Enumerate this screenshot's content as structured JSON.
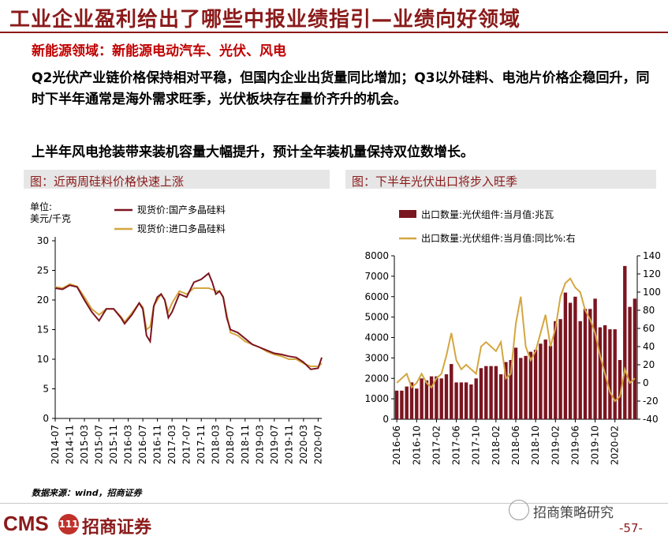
{
  "title": "工业企业盈利给出了哪些中报业绩指引—业绩向好领域",
  "subtitle": "新能源领域：新能源电动汽车、光伏、风电",
  "paragraph1": "Q2光伏产业链价格保持相对平稳，但国内企业出货量同比增加；Q3以外硅料、电池片价格企稳回升，同时下半年通常是海外需求旺季，光伏板块存在量价齐升的机会。",
  "paragraph2": "上半年风电抢装带来装机容量大幅提升，预计全年装机量保持双位数增长。",
  "source": "数据来源：wind，招商证券",
  "footer": {
    "logo_text": "CMS",
    "logo_badge": "111",
    "logo_cn": "招商证券",
    "wechat": "招商策略研究",
    "page": "-57-"
  },
  "colors": {
    "brand": "#8b1a1a",
    "dark_series": "#7b1520",
    "gold_series": "#d4a640",
    "bar": "#7b1520"
  },
  "chart_data": [
    {
      "type": "line",
      "title": "图：近两周硅料价格快速上涨",
      "unit_label": [
        "单位:",
        "美元/千克"
      ],
      "ylim": [
        0,
        30
      ],
      "yticks": [
        0,
        5,
        10,
        15,
        20,
        25,
        30
      ],
      "xlim": [
        "2014-07",
        "2020-08"
      ],
      "xticks": [
        "2014-07",
        "2014-11",
        "2015-03",
        "2015-07",
        "2015-11",
        "2016-03",
        "2016-07",
        "2016-11",
        "2017-03",
        "2017-07",
        "2017-11",
        "2018-03",
        "2018-07",
        "2018-11",
        "2019-03",
        "2019-07",
        "2019-11",
        "2020-03",
        "2020-07"
      ],
      "series": [
        {
          "name": "现货价:国产多晶硅料",
          "color": "#7b1520",
          "points": [
            [
              "2014-07",
              22
            ],
            [
              "2014-09",
              21.8
            ],
            [
              "2014-11",
              22.5
            ],
            [
              "2015-01",
              22.2
            ],
            [
              "2015-03",
              20
            ],
            [
              "2015-05",
              18
            ],
            [
              "2015-07",
              16.5
            ],
            [
              "2015-09",
              18.5
            ],
            [
              "2015-11",
              18.5
            ],
            [
              "2016-01",
              17
            ],
            [
              "2016-02",
              16
            ],
            [
              "2016-04",
              17.5
            ],
            [
              "2016-06",
              19.5
            ],
            [
              "2016-07",
              18.5
            ],
            [
              "2016-08",
              14
            ],
            [
              "2016-09",
              13
            ],
            [
              "2016-10",
              19
            ],
            [
              "2016-11",
              20.5
            ],
            [
              "2016-12",
              21
            ],
            [
              "2017-01",
              20
            ],
            [
              "2017-02",
              17
            ],
            [
              "2017-03",
              18
            ],
            [
              "2017-05",
              21
            ],
            [
              "2017-07",
              20.5
            ],
            [
              "2017-09",
              23
            ],
            [
              "2017-11",
              23.5
            ],
            [
              "2018-01",
              24.5
            ],
            [
              "2018-02",
              23
            ],
            [
              "2018-03",
              21
            ],
            [
              "2018-04",
              21.5
            ],
            [
              "2018-05",
              20.5
            ],
            [
              "2018-06",
              17
            ],
            [
              "2018-07",
              15
            ],
            [
              "2018-09",
              14.5
            ],
            [
              "2018-11",
              13.5
            ],
            [
              "2019-01",
              12.5
            ],
            [
              "2019-03",
              12
            ],
            [
              "2019-05",
              11.5
            ],
            [
              "2019-07",
              11
            ],
            [
              "2019-09",
              10.8
            ],
            [
              "2019-11",
              10.5
            ],
            [
              "2020-01",
              10.3
            ],
            [
              "2020-03",
              9.5
            ],
            [
              "2020-05",
              8.3
            ],
            [
              "2020-07",
              8.5
            ],
            [
              "2020-08",
              10.3
            ]
          ]
        },
        {
          "name": "现货价:进口多晶硅料",
          "color": "#d4a640",
          "points": [
            [
              "2014-07",
              22.2
            ],
            [
              "2014-09",
              22
            ],
            [
              "2014-11",
              22.7
            ],
            [
              "2015-01",
              22.3
            ],
            [
              "2015-03",
              20.5
            ],
            [
              "2015-05",
              18.5
            ],
            [
              "2015-07",
              17.5
            ],
            [
              "2015-09",
              18.5
            ],
            [
              "2015-11",
              18.5
            ],
            [
              "2016-01",
              17.2
            ],
            [
              "2016-02",
              16.3
            ],
            [
              "2016-04",
              17.8
            ],
            [
              "2016-06",
              19.5
            ],
            [
              "2016-07",
              18.8
            ],
            [
              "2016-08",
              15
            ],
            [
              "2016-09",
              15.5
            ],
            [
              "2016-10",
              19
            ],
            [
              "2016-11",
              20
            ],
            [
              "2016-12",
              21
            ],
            [
              "2017-01",
              20
            ],
            [
              "2017-02",
              18
            ],
            [
              "2017-03",
              19.5
            ],
            [
              "2017-05",
              21.5
            ],
            [
              "2017-07",
              21
            ],
            [
              "2017-09",
              22
            ],
            [
              "2017-11",
              22
            ],
            [
              "2018-01",
              22
            ],
            [
              "2018-02",
              21.8
            ],
            [
              "2018-03",
              21.5
            ],
            [
              "2018-04",
              21.5
            ],
            [
              "2018-05",
              20.5
            ],
            [
              "2018-06",
              17.5
            ],
            [
              "2018-07",
              14.5
            ],
            [
              "2018-09",
              14
            ],
            [
              "2018-11",
              13
            ],
            [
              "2019-01",
              12.5
            ],
            [
              "2019-03",
              12
            ],
            [
              "2019-05",
              11.3
            ],
            [
              "2019-07",
              10.8
            ],
            [
              "2019-09",
              10.5
            ],
            [
              "2019-11",
              10
            ],
            [
              "2020-01",
              10
            ],
            [
              "2020-03",
              9.3
            ],
            [
              "2020-05",
              8.8
            ],
            [
              "2020-07",
              8.8
            ],
            [
              "2020-08",
              9.3
            ]
          ]
        }
      ]
    },
    {
      "type": "bar+line",
      "title": "图：下半年光伏出口将步入旺季",
      "categories": [
        "2016-06",
        "2016-07",
        "2016-08",
        "2016-09",
        "2016-10",
        "2016-11",
        "2016-12",
        "2017-01",
        "2017-02",
        "2017-03",
        "2017-04",
        "2017-05",
        "2017-06",
        "2017-07",
        "2017-08",
        "2017-09",
        "2017-10",
        "2017-11",
        "2017-12",
        "2018-01",
        "2018-02",
        "2018-03",
        "2018-04",
        "2018-05",
        "2018-06",
        "2018-07",
        "2018-08",
        "2018-09",
        "2018-10",
        "2018-11",
        "2018-12",
        "2019-01",
        "2019-02",
        "2019-03",
        "2019-04",
        "2019-05",
        "2019-06",
        "2019-07",
        "2019-08",
        "2019-09",
        "2019-10",
        "2019-11",
        "2019-12",
        "2020-01",
        "2020-02",
        "2020-03",
        "2020-04",
        "2020-05",
        "2020-06"
      ],
      "xticks": [
        "2016-06",
        "2016-10",
        "2017-02",
        "2017-06",
        "2017-10",
        "2018-02",
        "2018-06",
        "2018-10",
        "2019-02",
        "2019-06",
        "2019-10",
        "2020-02"
      ],
      "series": [
        {
          "name": "出口数量:光伏组件:当月值:兆瓦",
          "axis": "left",
          "kind": "bar",
          "color": "#7b1520",
          "values": [
            1400,
            1400,
            1600,
            1800,
            1500,
            2000,
            1900,
            2100,
            2100,
            2000,
            2200,
            2700,
            1800,
            1800,
            1800,
            1700,
            2000,
            2500,
            2600,
            2600,
            2600,
            2200,
            2800,
            2900,
            3500,
            3000,
            3100,
            3300,
            3400,
            3700,
            3900,
            3600,
            4800,
            4900,
            6200,
            5700,
            6000,
            4800,
            5400,
            5400,
            5900,
            4500,
            4600,
            4400,
            4400,
            2900,
            7500,
            5500,
            5900
          ]
        },
        {
          "name": "出口数量:光伏组件:当月值:同比%:右",
          "axis": "right",
          "kind": "line",
          "color": "#d4a640",
          "values": [
            0,
            5,
            10,
            -5,
            0,
            10,
            0,
            -5,
            5,
            10,
            30,
            55,
            25,
            15,
            20,
            15,
            10,
            40,
            45,
            40,
            35,
            45,
            5,
            10,
            65,
            95,
            40,
            25,
            35,
            55,
            75,
            40,
            60,
            95,
            110,
            115,
            105,
            100,
            80,
            70,
            55,
            30,
            10,
            -10,
            -20,
            -15,
            15,
            0,
            5
          ]
        }
      ],
      "ylim_left": [
        0,
        8000
      ],
      "yticks_left": [
        0,
        1000,
        2000,
        3000,
        4000,
        5000,
        6000,
        7000,
        8000
      ],
      "ylim_right": [
        -40,
        140
      ],
      "yticks_right": [
        -40,
        -20,
        0,
        20,
        40,
        60,
        80,
        100,
        120,
        140
      ]
    }
  ]
}
